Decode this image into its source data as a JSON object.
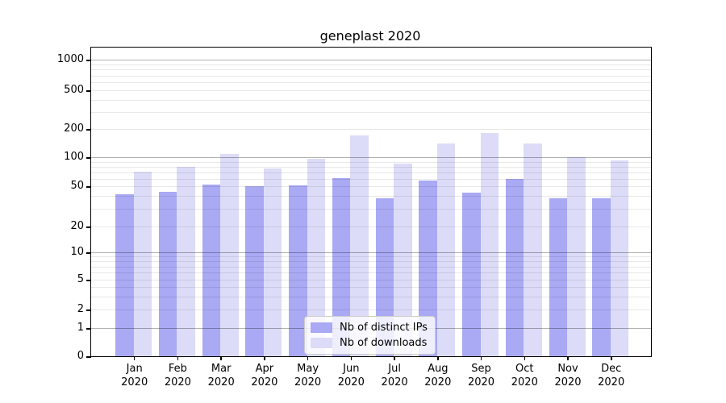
{
  "title": "geneplast 2020",
  "chart_data": {
    "type": "bar",
    "title": "geneplast 2020",
    "categories": [
      "Jan 2020",
      "Feb 2020",
      "Mar 2020",
      "Apr 2020",
      "May 2020",
      "Jun 2020",
      "Jul 2020",
      "Aug 2020",
      "Sep 2020",
      "Oct 2020",
      "Nov 2020",
      "Dec 2020"
    ],
    "series": [
      {
        "name": "Nb of distinct IPs",
        "color": "#a9a9f4",
        "values": [
          42,
          44,
          52,
          50,
          51,
          61,
          38,
          57,
          43,
          60,
          38,
          38
        ]
      },
      {
        "name": "Nb of downloads",
        "color": "#dcdcf8",
        "values": [
          71,
          79,
          109,
          77,
          97,
          172,
          86,
          140,
          182,
          139,
          100,
          93
        ]
      }
    ],
    "y_scale": "symlog",
    "y_ticks": [
      0,
      1,
      2,
      5,
      10,
      20,
      50,
      100,
      200,
      500,
      1000
    ],
    "y_major_gridlines": [
      1,
      10,
      100,
      1000
    ],
    "y_minor_gridlines": [
      2,
      3,
      4,
      5,
      6,
      7,
      8,
      9,
      20,
      30,
      40,
      50,
      60,
      70,
      80,
      90,
      200,
      300,
      400,
      500,
      600,
      700,
      800,
      900
    ],
    "ylim": [
      0,
      1400
    ],
    "xlabel": "",
    "ylabel": "",
    "grid": true,
    "legend_position": "lower center"
  }
}
